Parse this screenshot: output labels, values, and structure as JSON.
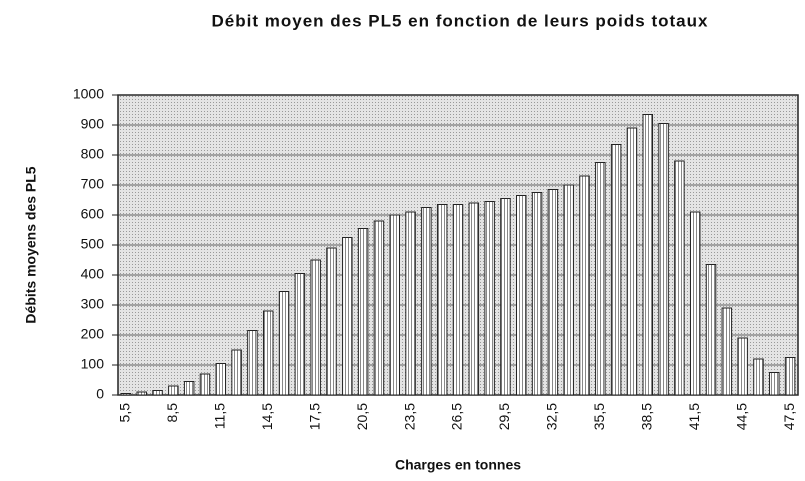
{
  "chart_data": {
    "type": "bar",
    "title": "Débit moyen des PL5 en fonction de leurs poids totaux",
    "x_label": "Charges en tonnes",
    "y_label": "Débits moyens des PL5",
    "categories": [
      "5,5",
      null,
      null,
      "8,5",
      null,
      null,
      "11,5",
      null,
      null,
      "14,5",
      null,
      null,
      "17,5",
      null,
      null,
      "20,5",
      null,
      null,
      "23,5",
      null,
      null,
      "26,5",
      null,
      null,
      "29,5",
      null,
      null,
      "32,5",
      null,
      null,
      "35,5",
      null,
      null,
      "38,5",
      null,
      null,
      "41,5",
      null,
      null,
      "44,5",
      null,
      null,
      "47,5"
    ],
    "values": [
      5,
      10,
      15,
      30,
      45,
      70,
      105,
      150,
      215,
      280,
      345,
      405,
      450,
      490,
      525,
      555,
      580,
      600,
      610,
      625,
      635,
      635,
      640,
      645,
      655,
      665,
      675,
      685,
      700,
      730,
      775,
      835,
      890,
      935,
      905,
      780,
      610,
      435,
      290,
      190,
      120,
      75,
      125
    ],
    "color": "#ffffff",
    "ylim": [
      0,
      1000
    ],
    "yticks": [
      0,
      100,
      200,
      300,
      400,
      500,
      600,
      700,
      800,
      900,
      1000
    ],
    "grid": true
  }
}
